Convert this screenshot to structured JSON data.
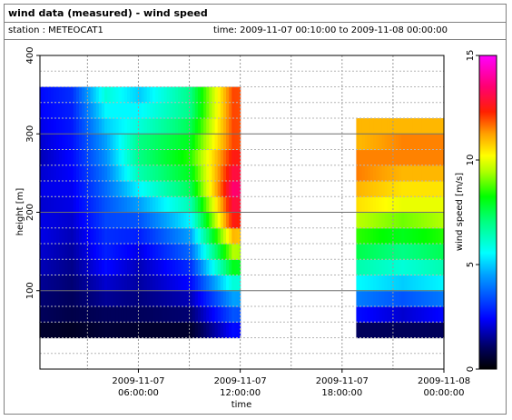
{
  "title": "wind data (measured) - wind speed",
  "station_text": "station : METEOCAT1",
  "time_text": "time: 2009-11-07 00:10:00 to 2009-11-08 00:00:00",
  "chart_data": {
    "type": "heatmap",
    "xlabel": "time",
    "ylabel": "height [m]",
    "colorbar_label": "wind speed [m/s]",
    "x_ticks": [
      {
        "hours": 6,
        "line1": "2009-11-07",
        "line2": "06:00:00"
      },
      {
        "hours": 12,
        "line1": "2009-11-07",
        "line2": "12:00:00"
      },
      {
        "hours": 18,
        "line1": "2009-11-07",
        "line2": "18:00:00"
      },
      {
        "hours": 24,
        "line1": "2009-11-08",
        "line2": "00:00:00"
      }
    ],
    "xlim_hours": [
      0.2,
      24
    ],
    "ylim": [
      0,
      400
    ],
    "y_ticks": [
      100,
      200,
      300,
      400
    ],
    "colorbar_range": [
      0,
      15
    ],
    "colorbar_ticks": [
      0,
      5,
      10,
      15
    ],
    "grid": true,
    "heights_m": [
      50,
      70,
      90,
      110,
      130,
      150,
      170,
      190,
      210,
      230,
      250,
      270,
      290,
      310,
      330,
      350
    ],
    "segments": [
      {
        "start": "2009-11-07 00:10",
        "end": "2009-11-07 09:10",
        "top_height_m": 360
      },
      {
        "start": "2009-11-07 06:20",
        "end": "2009-11-07 12:00",
        "top_height_m": 360
      },
      {
        "start": "2009-11-07 18:50",
        "end": "2009-11-08 00:00",
        "top_height_m": 320
      }
    ],
    "wind_speed_ms": {
      "2009-11-07 00:10": [
        0.5,
        1.0,
        1.2,
        1.5,
        1.8,
        2.0,
        2.2,
        2.2,
        2.0,
        2.2,
        2.0,
        1.8,
        2.0,
        2.2,
        2.4,
        2.5
      ],
      "2009-11-07 02:00": [
        0.4,
        0.8,
        1.0,
        1.2,
        1.4,
        1.6,
        1.8,
        2.0,
        2.2,
        2.3,
        2.4,
        2.5,
        2.6,
        2.7,
        2.8,
        3.0
      ],
      "2009-11-07 04:00": [
        0.6,
        1.0,
        1.5,
        2.0,
        2.5,
        2.8,
        3.0,
        3.3,
        3.5,
        3.8,
        4.0,
        4.3,
        4.5,
        5.0,
        5.5,
        6.0
      ],
      "2009-11-07 06:00": [
        0.5,
        1.0,
        1.3,
        1.6,
        1.8,
        2.2,
        2.8,
        3.5,
        4.5,
        5.5,
        6.5,
        7.0,
        7.0,
        6.0,
        5.5,
        5.0
      ],
      "2009-11-07 09:00": [
        0.5,
        1.2,
        1.8,
        2.5,
        3.0,
        3.8,
        4.5,
        5.5,
        6.5,
        7.5,
        8.0,
        8.5,
        8.0,
        7.5,
        7.0,
        7.0
      ],
      "2009-11-07 11:30": [
        2.5,
        3.5,
        4.5,
        6.0,
        8.0,
        9.5,
        11.0,
        12.5,
        13.0,
        13.5,
        13.0,
        12.5,
        12.0,
        12.0,
        12.0,
        12.0
      ],
      "2009-11-07 19:00": [
        1.0,
        2.5,
        4.0,
        5.5,
        6.5,
        7.5,
        8.5,
        9.5,
        10.5,
        11.0,
        11.5,
        11.5,
        11.0,
        11.0,
        11.0,
        11.0
      ],
      "2009-11-07 21:30": [
        1.0,
        2.0,
        3.5,
        5.0,
        6.0,
        7.0,
        8.0,
        9.0,
        10.0,
        10.5,
        11.0,
        11.5,
        11.5,
        11.0,
        11.0,
        11.0
      ],
      "2009-11-08 00:00": [
        1.0,
        2.5,
        4.0,
        5.5,
        6.5,
        7.5,
        8.5,
        9.5,
        10.0,
        10.5,
        11.0,
        11.5,
        11.5,
        11.0,
        11.0,
        11.0
      ]
    }
  }
}
